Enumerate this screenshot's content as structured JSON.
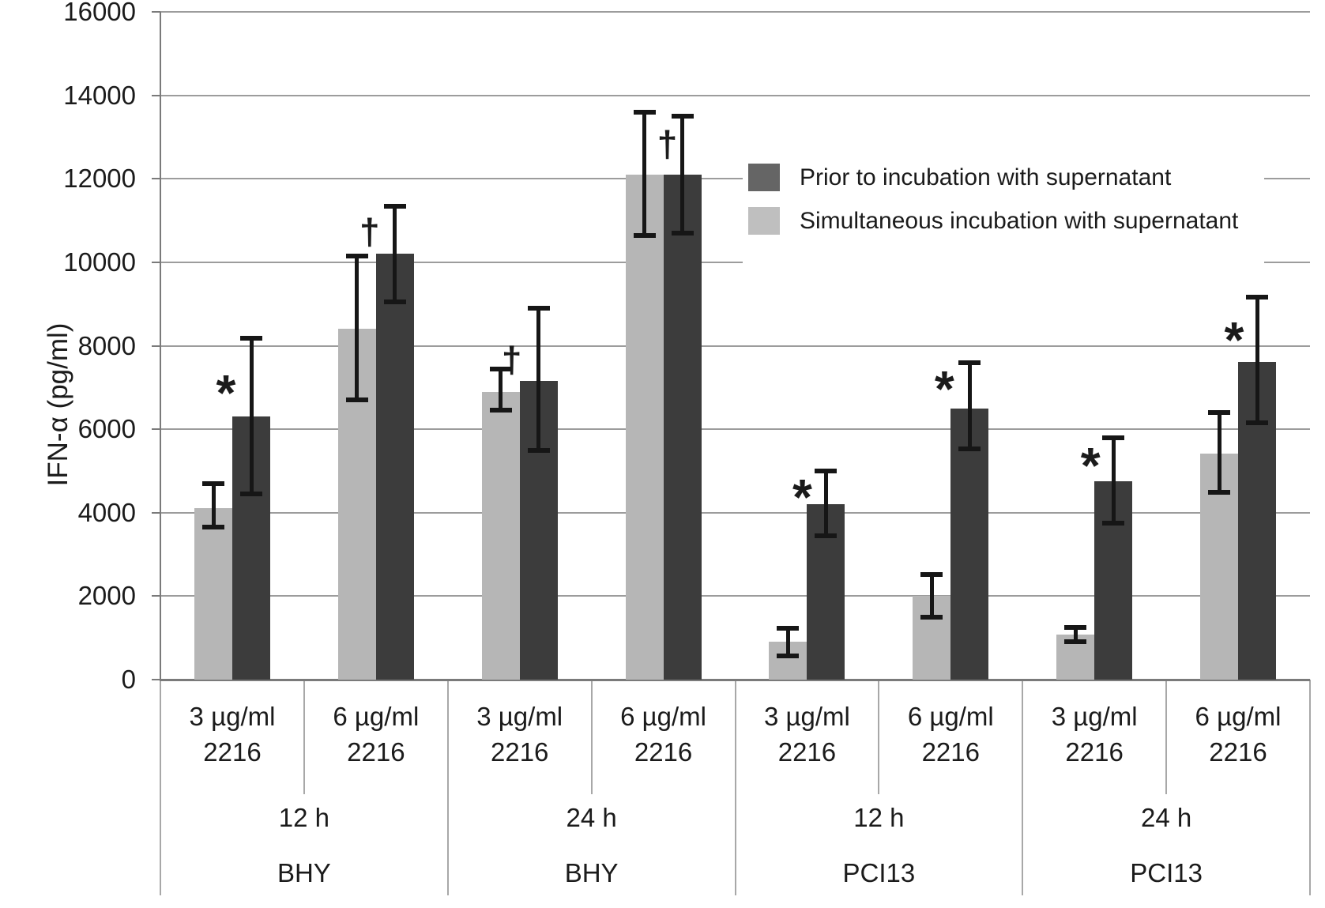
{
  "chart_data": {
    "type": "bar",
    "title": "",
    "ylabel": "IFN-α (pg/ml)",
    "ylim": [
      0,
      16000
    ],
    "ytick_step": 2000,
    "yticks": [
      0,
      2000,
      4000,
      6000,
      8000,
      10000,
      12000,
      14000,
      16000
    ],
    "grid": "horizontal",
    "legend_position": "upper-right-inside",
    "legend": [
      {
        "name": "Prior to incubation with supernatant",
        "swatch_color": "#656565",
        "bar_color": "#3c3c3c",
        "series_key": "prior"
      },
      {
        "name": "Simultaneous incubation with supernatant",
        "swatch_color": "#bfbfbf",
        "bar_color": "#b6b6b6",
        "series_key": "simultaneous"
      }
    ],
    "time_labels": [
      "12 h",
      "24 h",
      "12 h",
      "24 h"
    ],
    "cell_labels": [
      "BHY",
      "BHY",
      "PCI13",
      "PCI13"
    ],
    "groups": [
      {
        "dose": "3 µg/ml",
        "agent": "2216",
        "time": "12 h",
        "cell": "BHY",
        "simultaneous": {
          "value": 4100,
          "err_lo": 3650,
          "err_hi": 4700
        },
        "prior": {
          "value": 6300,
          "err_lo": 4450,
          "err_hi": 8180
        },
        "marker": {
          "glyph": "*",
          "value": 7100,
          "dx": -8
        }
      },
      {
        "dose": "6 µg/ml",
        "agent": "2216",
        "time": "12 h",
        "cell": "BHY",
        "simultaneous": {
          "value": 8400,
          "err_lo": 6700,
          "err_hi": 10150
        },
        "prior": {
          "value": 10200,
          "err_lo": 9050,
          "err_hi": 11350
        },
        "marker": {
          "glyph": "†",
          "value": 10800,
          "dx": -8
        }
      },
      {
        "dose": "3 µg/ml",
        "agent": "2216",
        "time": "24 h",
        "cell": "BHY",
        "simultaneous": {
          "value": 6900,
          "err_lo": 6450,
          "err_hi": 7450
        },
        "prior": {
          "value": 7150,
          "err_lo": 5500,
          "err_hi": 8900
        },
        "marker": {
          "glyph": "†",
          "value": 7730,
          "dx": -10
        }
      },
      {
        "dose": "6 µg/ml",
        "agent": "2216",
        "time": "24 h",
        "cell": "BHY",
        "simultaneous": {
          "value": 12100,
          "err_lo": 10650,
          "err_hi": 13600
        },
        "prior": {
          "value": 12100,
          "err_lo": 10700,
          "err_hi": 13500
        },
        "marker": {
          "glyph": "†",
          "value": 12900,
          "dx": 5
        }
      },
      {
        "dose": "3 µg/ml",
        "agent": "2216",
        "time": "12 h",
        "cell": "PCI13",
        "simultaneous": {
          "value": 900,
          "err_lo": 570,
          "err_hi": 1230
        },
        "prior": {
          "value": 4200,
          "err_lo": 3450,
          "err_hi": 5000
        },
        "marker": {
          "glyph": "*",
          "value": 4600,
          "dx": -6
        }
      },
      {
        "dose": "6 µg/ml",
        "agent": "2216",
        "time": "12 h",
        "cell": "PCI13",
        "simultaneous": {
          "value": 2000,
          "err_lo": 1500,
          "err_hi": 2520
        },
        "prior": {
          "value": 6500,
          "err_lo": 5530,
          "err_hi": 7590
        },
        "marker": {
          "glyph": "*",
          "value": 7200,
          "dx": -8
        }
      },
      {
        "dose": "3 µg/ml",
        "agent": "2216",
        "time": "24 h",
        "cell": "PCI13",
        "simultaneous": {
          "value": 1080,
          "err_lo": 910,
          "err_hi": 1250
        },
        "prior": {
          "value": 4750,
          "err_lo": 3740,
          "err_hi": 5800
        },
        "marker": {
          "glyph": "*",
          "value": 5360,
          "dx": -5
        }
      },
      {
        "dose": "6 µg/ml",
        "agent": "2216",
        "time": "24 h",
        "cell": "PCI13",
        "simultaneous": {
          "value": 5420,
          "err_lo": 4480,
          "err_hi": 6400
        },
        "prior": {
          "value": 7610,
          "err_lo": 6150,
          "err_hi": 9170
        },
        "marker": {
          "glyph": "*",
          "value": 8370,
          "dx": -5
        }
      }
    ],
    "colors": {
      "bar_dark": "#3c3c3c",
      "bar_light": "#b6b6b6",
      "error_bar": "#161616",
      "gridline": "#9c9c9c",
      "axis": "#7a7a7a",
      "table_line": "#a8a8a8",
      "text": "#1b1b1b",
      "background": "#ffffff"
    }
  }
}
